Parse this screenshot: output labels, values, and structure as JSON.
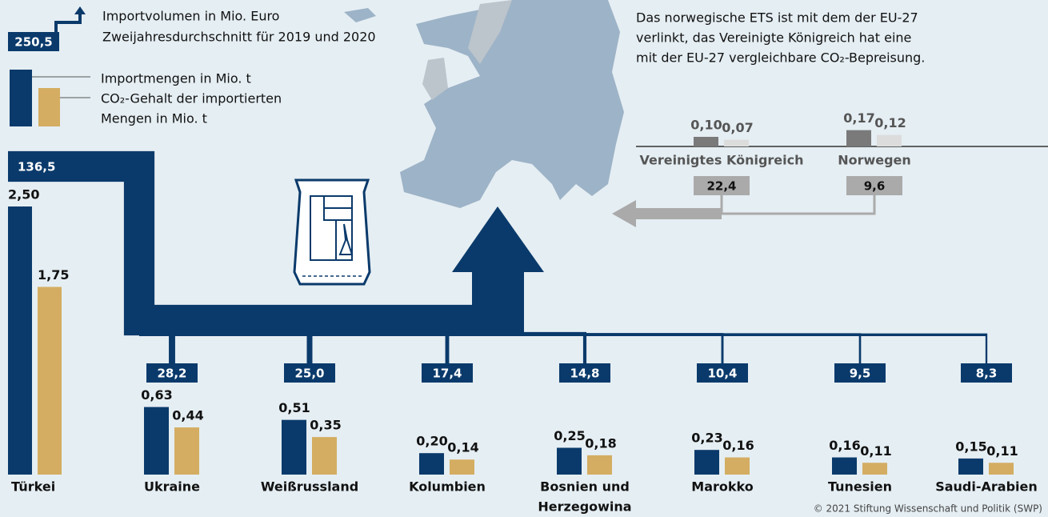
{
  "legend": {
    "volume_sample": {
      "value": 250.5,
      "label": "250,5"
    },
    "volume_text": [
      "Importvolumen in Mio. Euro",
      "Zweijahresdurchschnitt für 2019 und 2020"
    ],
    "quantity_text": "Importmengen in Mio. t",
    "co2_text": [
      "CO₂-Gehalt der importierten",
      "Mengen in Mio. t"
    ]
  },
  "note": [
    "Das norwegische ETS ist mit dem der EU-27",
    "verlinkt, das Vereinigte Königreich hat eine",
    "mit der EU-27 vergleichbare CO₂-Bepreisung."
  ],
  "countries": [
    {
      "name": [
        "Türkei"
      ],
      "volume": {
        "value": 136.5,
        "label": "136,5"
      },
      "quantity": {
        "value": 2.5,
        "label": "2,50"
      },
      "co2": {
        "value": 1.75,
        "label": "1,75"
      }
    },
    {
      "name": [
        "Ukraine"
      ],
      "volume": {
        "value": 28.2,
        "label": "28,2"
      },
      "quantity": {
        "value": 0.63,
        "label": "0,63"
      },
      "co2": {
        "value": 0.44,
        "label": "0,44"
      }
    },
    {
      "name": [
        "Weißrussland"
      ],
      "volume": {
        "value": 25,
        "label": "25,0"
      },
      "quantity": {
        "value": 0.51,
        "label": "0,51"
      },
      "co2": {
        "value": 0.35,
        "label": "0,35"
      }
    },
    {
      "name": [
        "Kolumbien"
      ],
      "volume": {
        "value": 17.4,
        "label": "17,4"
      },
      "quantity": {
        "value": 0.2,
        "label": "0,20"
      },
      "co2": {
        "value": 0.14,
        "label": "0,14"
      }
    },
    {
      "name": [
        "Bosnien und",
        "Herzegowina"
      ],
      "volume": {
        "value": 14.8,
        "label": "14,8"
      },
      "quantity": {
        "value": 0.25,
        "label": "0,25"
      },
      "co2": {
        "value": 0.18,
        "label": "0,18"
      }
    },
    {
      "name": [
        "Marokko"
      ],
      "volume": {
        "value": 10.4,
        "label": "10,4"
      },
      "quantity": {
        "value": 0.23,
        "label": "0,23"
      },
      "co2": {
        "value": 0.16,
        "label": "0,16"
      }
    },
    {
      "name": [
        "Tunesien"
      ],
      "volume": {
        "value": 9.5,
        "label": "9,5"
      },
      "quantity": {
        "value": 0.16,
        "label": "0,16"
      },
      "co2": {
        "value": 0.11,
        "label": "0,11"
      }
    },
    {
      "name": [
        "Saudi-Arabien"
      ],
      "volume": {
        "value": 8.3,
        "label": "8,3"
      },
      "quantity": {
        "value": 0.15,
        "label": "0,15"
      },
      "co2": {
        "value": 0.11,
        "label": "0,11"
      }
    }
  ],
  "linked": [
    {
      "name": "Vereinigtes Königreich",
      "volume": {
        "value": 22.4,
        "label": "22,4"
      },
      "quantity": {
        "value": 0.1,
        "label": "0,10"
      },
      "co2": {
        "value": 0.07,
        "label": "0,07"
      }
    },
    {
      "name": "Norwegen",
      "volume": {
        "value": 9.6,
        "label": "9,6"
      },
      "quantity": {
        "value": 0.17,
        "label": "0,17"
      },
      "co2": {
        "value": 0.12,
        "label": "0,12"
      }
    }
  ],
  "credit": "© 2021 Stiftung Wissenschaft und Politik (SWP)"
}
